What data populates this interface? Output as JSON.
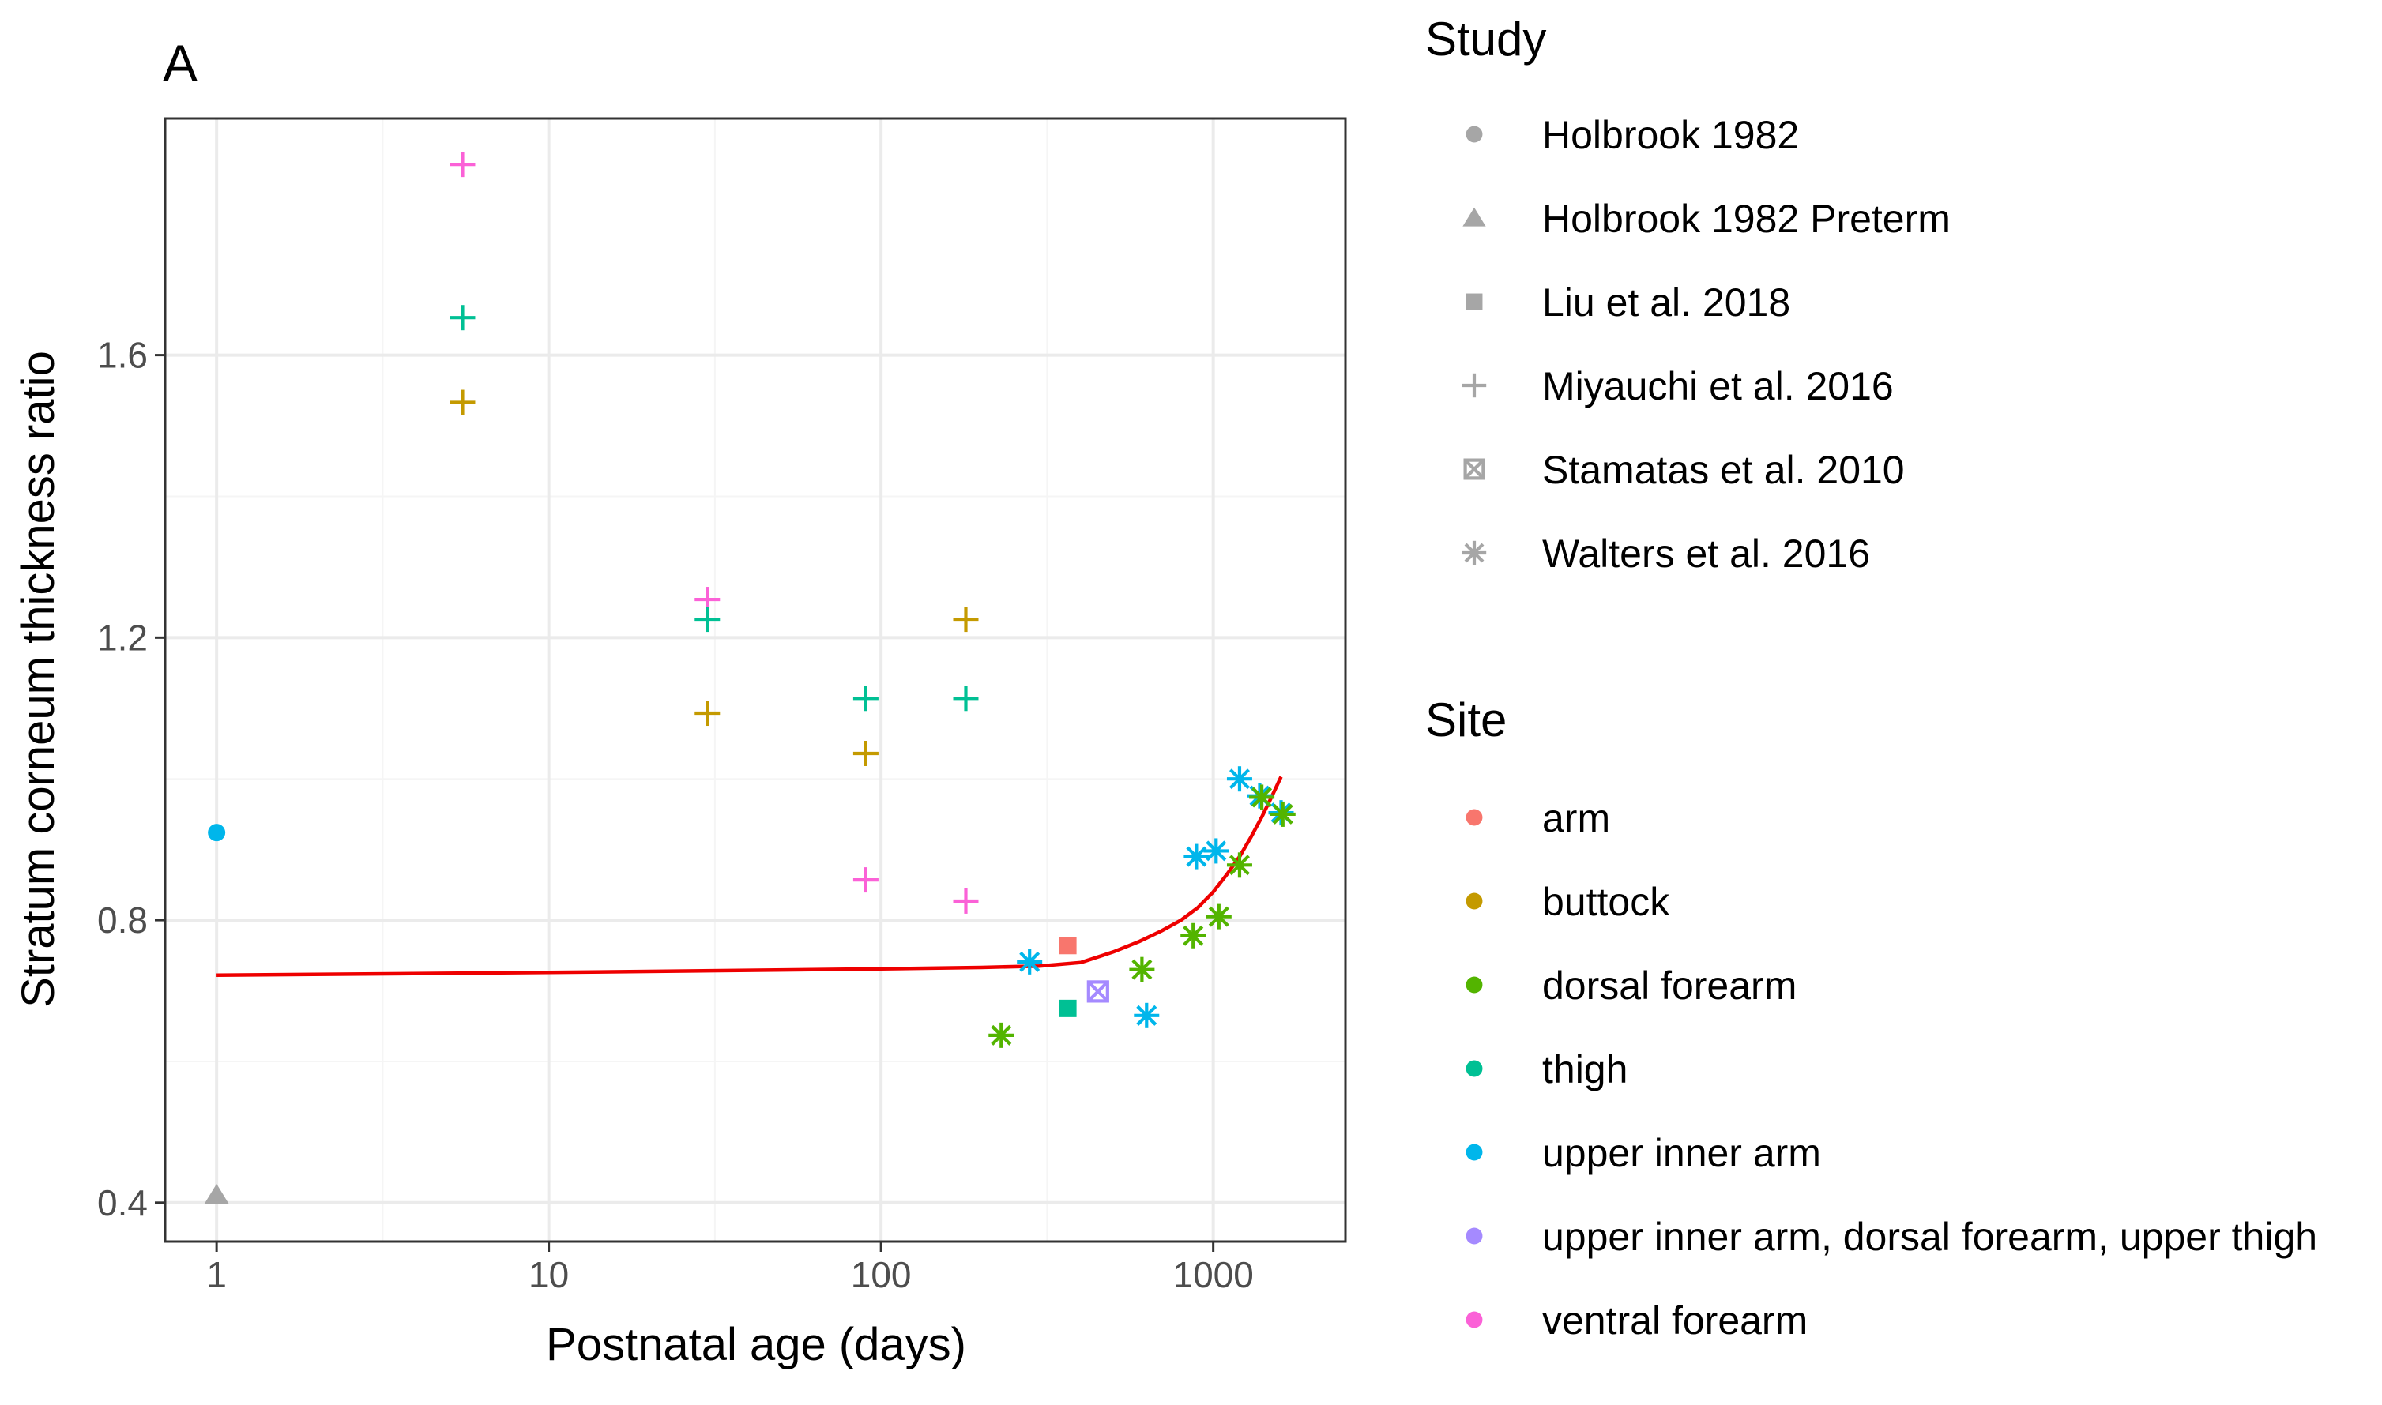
{
  "chart_data": {
    "type": "scatter",
    "panel_label": "A",
    "xlabel": "Postnatal age (days)",
    "ylabel": "Stratum corneum thickness ratio",
    "x_scale": "log10",
    "xlim": [
      0.7,
      2500
    ],
    "ylim": [
      0.345,
      1.935
    ],
    "x_ticks": [
      1,
      10,
      100,
      1000
    ],
    "x_tick_labels": [
      "1",
      "10",
      "100",
      "1000"
    ],
    "y_ticks": [
      0.4,
      0.8,
      1.2,
      1.6
    ],
    "y_tick_labels": [
      "0.4",
      "0.8",
      "1.2",
      "1.6"
    ],
    "grid": true,
    "legend_position": "right",
    "colors": {
      "arm": "#F8766D",
      "buttock": "#C49A00",
      "dorsal forearm": "#53B400",
      "thigh": "#00C094",
      "upper inner arm": "#00B6EB",
      "upper inner arm, dorsal forearm, upper thigh": "#A58AFF",
      "ventral forearm": "#FB61D7",
      "study_key": "#a6a6a6",
      "fit": "#ee0000",
      "panel_border": "#333333",
      "grid_major": "#ebebeb",
      "grid_minor": "#f5f5f5"
    },
    "points": [
      {
        "x": 1,
        "y": 0.924,
        "study": "Holbrook 1982",
        "site": "upper inner arm"
      },
      {
        "x": 1,
        "y": 0.411,
        "study": "Holbrook 1982 Preterm",
        "site": ""
      },
      {
        "x": 5.5,
        "y": 1.87,
        "study": "Miyauchi et al. 2016",
        "site": "ventral forearm"
      },
      {
        "x": 5.5,
        "y": 1.653,
        "study": "Miyauchi et al. 2016",
        "site": "thigh"
      },
      {
        "x": 5.5,
        "y": 1.533,
        "study": "Miyauchi et al. 2016",
        "site": "buttock"
      },
      {
        "x": 30,
        "y": 1.254,
        "study": "Miyauchi et al. 2016",
        "site": "ventral forearm"
      },
      {
        "x": 30,
        "y": 1.226,
        "study": "Miyauchi et al. 2016",
        "site": "thigh"
      },
      {
        "x": 30,
        "y": 1.093,
        "study": "Miyauchi et al. 2016",
        "site": "buttock"
      },
      {
        "x": 90,
        "y": 1.114,
        "study": "Miyauchi et al. 2016",
        "site": "thigh"
      },
      {
        "x": 90,
        "y": 1.036,
        "study": "Miyauchi et al. 2016",
        "site": "buttock"
      },
      {
        "x": 90,
        "y": 0.857,
        "study": "Miyauchi et al. 2016",
        "site": "ventral forearm"
      },
      {
        "x": 180,
        "y": 1.226,
        "study": "Miyauchi et al. 2016",
        "site": "buttock"
      },
      {
        "x": 180,
        "y": 1.114,
        "study": "Miyauchi et al. 2016",
        "site": "thigh"
      },
      {
        "x": 180,
        "y": 0.827,
        "study": "Miyauchi et al. 2016",
        "site": "ventral forearm"
      },
      {
        "x": 365,
        "y": 0.764,
        "study": "Liu et al. 2018",
        "site": "arm"
      },
      {
        "x": 365,
        "y": 0.675,
        "study": "Liu et al. 2018",
        "site": "thigh"
      },
      {
        "x": 450,
        "y": 0.699,
        "study": "Stamatas et al. 2010",
        "site": "upper inner arm, dorsal forearm, upper thigh"
      },
      {
        "x": 230,
        "y": 0.637,
        "study": "Walters et al. 2016",
        "site": "dorsal forearm"
      },
      {
        "x": 280,
        "y": 0.741,
        "study": "Walters et al. 2016",
        "site": "upper inner arm"
      },
      {
        "x": 610,
        "y": 0.73,
        "study": "Walters et al. 2016",
        "site": "dorsal forearm"
      },
      {
        "x": 630,
        "y": 0.665,
        "study": "Walters et al. 2016",
        "site": "upper inner arm"
      },
      {
        "x": 870,
        "y": 0.778,
        "study": "Walters et al. 2016",
        "site": "dorsal forearm"
      },
      {
        "x": 890,
        "y": 0.89,
        "study": "Walters et al. 2016",
        "site": "upper inner arm"
      },
      {
        "x": 1020,
        "y": 0.898,
        "study": "Walters et al. 2016",
        "site": "upper inner arm"
      },
      {
        "x": 1040,
        "y": 0.805,
        "study": "Walters et al. 2016",
        "site": "dorsal forearm"
      },
      {
        "x": 1200,
        "y": 0.878,
        "study": "Walters et al. 2016",
        "site": "dorsal forearm"
      },
      {
        "x": 1200,
        "y": 1.0,
        "study": "Walters et al. 2016",
        "site": "upper inner arm"
      },
      {
        "x": 1380,
        "y": 0.976,
        "study": "Walters et al. 2016",
        "site": "upper inner arm"
      },
      {
        "x": 1400,
        "y": 0.974,
        "study": "Walters et al. 2016",
        "site": "dorsal forearm"
      },
      {
        "x": 1600,
        "y": 0.952,
        "study": "Walters et al. 2016",
        "site": "upper inner arm"
      },
      {
        "x": 1620,
        "y": 0.95,
        "study": "Walters et al. 2016",
        "site": "dorsal forearm"
      }
    ],
    "fit_line": {
      "name": "fit",
      "x": [
        1,
        10,
        100,
        200,
        300,
        400,
        500,
        600,
        700,
        800,
        900,
        1000,
        1100,
        1200,
        1300,
        1400,
        1500,
        1600
      ],
      "y": [
        0.722,
        0.726,
        0.731,
        0.733,
        0.735,
        0.74,
        0.755,
        0.77,
        0.785,
        0.8,
        0.818,
        0.84,
        0.865,
        0.89,
        0.918,
        0.946,
        0.975,
        1.003
      ]
    },
    "legend": {
      "study_title": "Study",
      "study_entries": [
        {
          "label": "Holbrook 1982",
          "shape": "circle"
        },
        {
          "label": "Holbrook 1982 Preterm",
          "shape": "triangle"
        },
        {
          "label": "Liu et al. 2018",
          "shape": "square"
        },
        {
          "label": "Miyauchi et al. 2016",
          "shape": "plus"
        },
        {
          "label": "Stamatas et al. 2010",
          "shape": "boxx"
        },
        {
          "label": "Walters et al. 2016",
          "shape": "star"
        }
      ],
      "site_title": "Site",
      "site_entries": [
        {
          "label": "arm"
        },
        {
          "label": "buttock"
        },
        {
          "label": "dorsal forearm"
        },
        {
          "label": "thigh"
        },
        {
          "label": "upper inner arm"
        },
        {
          "label": "upper inner arm, dorsal forearm, upper thigh"
        },
        {
          "label": "ventral forearm"
        }
      ]
    }
  }
}
